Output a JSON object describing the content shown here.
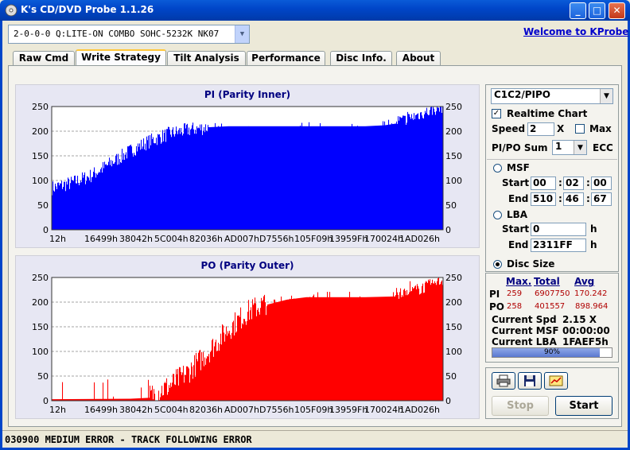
{
  "window": {
    "title": "K's CD/DVD Probe 1.1.26"
  },
  "drive": {
    "value": "2-0-0-0 Q:LITE-ON COMBO SOHC-5232K NK07"
  },
  "welcome_link": "Welcome to KProbe",
  "tabs": [
    {
      "label": "Raw Cmd"
    },
    {
      "label": "Write Strategy"
    },
    {
      "label": "Tilt Analysis"
    },
    {
      "label": "Performance"
    },
    {
      "label": "Disc Info."
    },
    {
      "label": "About"
    }
  ],
  "active_tab": "Write Strategy",
  "chart_data": [
    {
      "type": "bar",
      "title": "PI (Parity Inner)",
      "color": "#0000ff",
      "ylim": [
        0,
        250
      ],
      "yticks": [
        0,
        50,
        100,
        150,
        200,
        250
      ],
      "xticks": [
        "12h",
        "16499h",
        "38042h",
        "5C004h",
        "82036h",
        "AD007h",
        "D7556h",
        "105F09h",
        "13959Fh",
        "170024h",
        "1AD026h"
      ],
      "profile": {
        "x": [
          0.0,
          0.05,
          0.1,
          0.15,
          0.2,
          0.25,
          0.3,
          0.35,
          0.4,
          0.45,
          0.5,
          0.6,
          0.7,
          0.8,
          0.85,
          0.9,
          0.95,
          1.0
        ],
        "y": [
          85,
          95,
          110,
          135,
          160,
          180,
          195,
          203,
          208,
          210,
          210,
          210,
          210,
          210,
          212,
          218,
          232,
          245
        ]
      }
    },
    {
      "type": "bar",
      "title": "PO (Parity Outer)",
      "color": "#ff0000",
      "ylim": [
        0,
        250
      ],
      "yticks": [
        0,
        50,
        100,
        150,
        200,
        250
      ],
      "xticks": [
        "12h",
        "16499h",
        "38042h",
        "5C004h",
        "82036h",
        "AD007h",
        "D7556h",
        "105F09h",
        "13959Fh",
        "170024h",
        "1AD026h"
      ],
      "profile": {
        "x": [
          0.0,
          0.2,
          0.25,
          0.3,
          0.35,
          0.4,
          0.45,
          0.5,
          0.55,
          0.6,
          0.65,
          0.7,
          0.8,
          0.9,
          0.95,
          1.0
        ],
        "y": [
          3,
          4,
          6,
          25,
          55,
          95,
          140,
          175,
          195,
          205,
          210,
          210,
          210,
          212,
          225,
          240
        ]
      }
    }
  ],
  "side": {
    "mode": "C1C2/PIPO",
    "realtime_label": "Realtime Chart",
    "realtime_checked": true,
    "speed_label": "Speed",
    "speed_value": "2",
    "speed_unit": "X",
    "max_label": "Max",
    "sum_label": "PI/PO Sum",
    "sum_value": "1",
    "ecc_label": "ECC",
    "msf_label": "MSF",
    "start_label": "Start",
    "end_label": "End",
    "msf_start": [
      "00",
      "02",
      "00"
    ],
    "msf_end": [
      "510",
      "46",
      "67"
    ],
    "lba_label": "LBA",
    "lba_start": "0",
    "lba_end": "2311FF",
    "h_unit": "h",
    "disc_size_label": "Disc Size"
  },
  "stats": {
    "headers": {
      "max": "Max.",
      "total": "Total",
      "avg": "Avg"
    },
    "pi": {
      "label": "PI",
      "max": "259",
      "total": "6907750",
      "avg": "170.242"
    },
    "po": {
      "label": "PO",
      "max": "258",
      "total": "401557",
      "avg": "898.964"
    },
    "current_spd_label": "Current Spd",
    "current_spd": "2.15  X",
    "current_msf_label": "Current MSF",
    "current_msf": "00:00:00",
    "current_lba_label": "Current LBA",
    "current_lba": "1FAEF5h",
    "progress": 0.9,
    "progress_text": "90%"
  },
  "buttons": {
    "stop": "Stop",
    "start": "Start"
  },
  "status": "030900 MEDIUM ERROR - TRACK FOLLOWING ERROR"
}
